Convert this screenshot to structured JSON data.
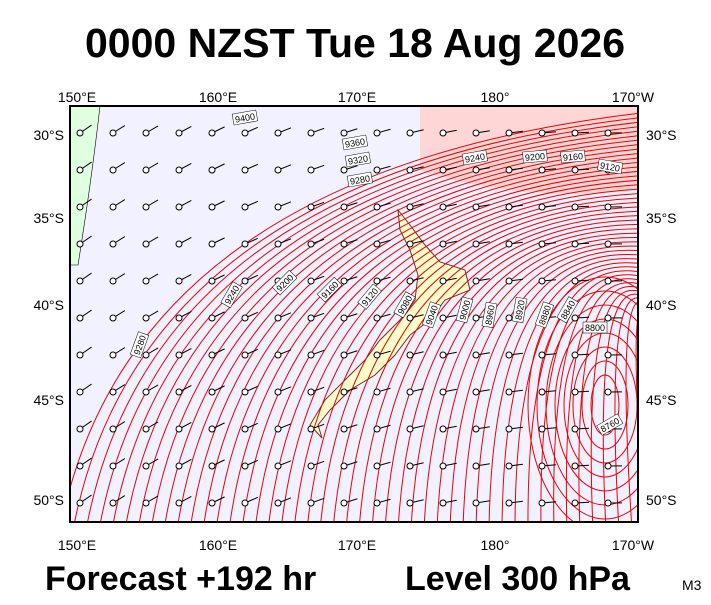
{
  "header": {
    "title": "0000 NZST Tue 18 Aug 2026"
  },
  "map": {
    "top_lon_labels": [
      "150°E",
      "160°E",
      "170°E",
      "180°",
      "170°W"
    ],
    "bottom_lon_labels": [
      "150°E",
      "160°E",
      "170°E",
      "180°",
      "170°W"
    ],
    "left_lat_labels": [
      "30°S",
      "35°S",
      "40°S",
      "45°S",
      "50°S"
    ],
    "right_lat_labels": [
      "30°S",
      "35°S",
      "40°S",
      "45°S",
      "50°S"
    ],
    "contour_labels": [
      "9400",
      "9360",
      "9320",
      "9280",
      "9240",
      "9200",
      "9160",
      "9120",
      "9240",
      "9200",
      "9160",
      "9120",
      "9080",
      "9040",
      "9000",
      "8960",
      "8920",
      "8880",
      "8840",
      "8800",
      "8760",
      "9280"
    ]
  },
  "footer": {
    "forecast": "Forecast +192 hr",
    "level": "Level 300 hPa",
    "code": "M3"
  }
}
